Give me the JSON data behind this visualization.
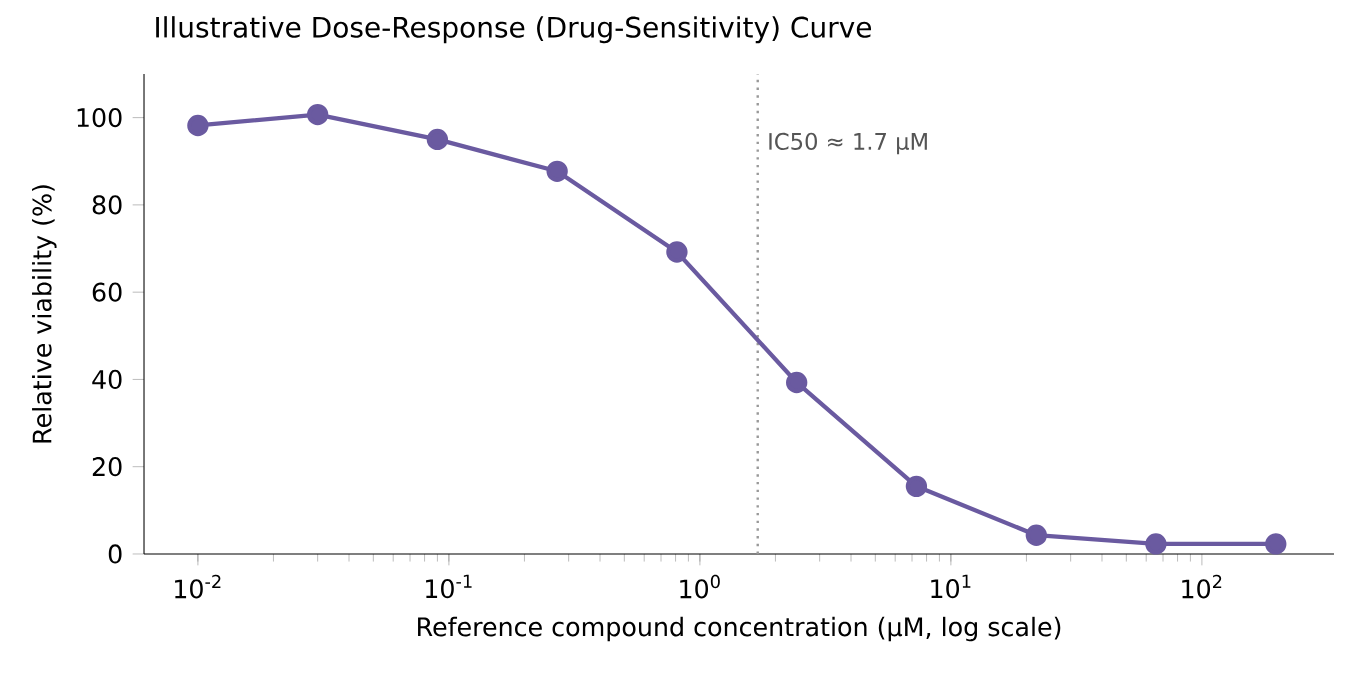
{
  "chart_data": {
    "type": "line",
    "title": "Illustrative Dose-Response (Drug-Sensitivity) Curve",
    "xlabel": "Reference compound concentration (µM, log scale)",
    "ylabel": "Relative viability (%)",
    "x": [
      0.01,
      0.03,
      0.09,
      0.27,
      0.81,
      2.43,
      7.29,
      21.9,
      65.6,
      197
    ],
    "series": [
      {
        "color": "#6a5aa0",
        "values": [
          98.2,
          100.7,
          95,
          87.7,
          69.2,
          39.3,
          15.5,
          4.3,
          2.3,
          2.3
        ]
      }
    ],
    "log": "x",
    "marker": "circle",
    "line_style": "solid",
    "xlim": [
      0.0061,
      336
    ],
    "ylim": [
      0,
      110
    ],
    "xticks": [
      {
        "value": 0.01,
        "label": "10$^{-2}$"
      },
      {
        "value": 0.1,
        "label": "10$^{-1}$"
      },
      {
        "value": 1,
        "label": "10$^{0}$"
      },
      {
        "value": 10,
        "label": "10$^{1}$"
      },
      {
        "value": 100,
        "label": "10$^{2}$"
      }
    ],
    "yticks": [
      0,
      20,
      40,
      60,
      80,
      100
    ],
    "ref_lines": [
      {
        "axis": "x",
        "value": 1.7,
        "label": "IC50 ≈ 1.7 µM",
        "color": "#999999",
        "line_style": "dotted"
      }
    ]
  }
}
